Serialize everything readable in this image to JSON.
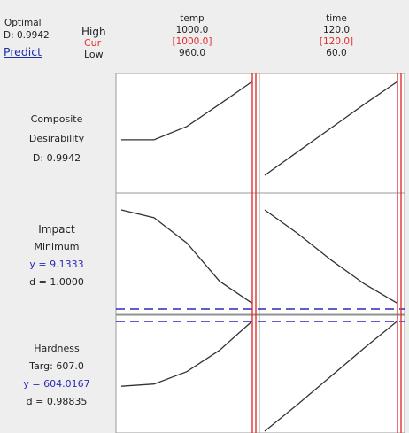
{
  "header": {
    "optimal_label": "Optimal",
    "d_value": "D: 0.9942",
    "predict_link": "Predict",
    "high_label": "High",
    "cur_label": "Cur",
    "low_label": "Low"
  },
  "factors": [
    {
      "name": "temp",
      "high": "1000.0",
      "cur": "[1000.0]",
      "low": "960.0"
    },
    {
      "name": "time",
      "high": "120.0",
      "cur": "[120.0]",
      "low": "60.0"
    }
  ],
  "rows": [
    {
      "title": "Composite",
      "line2": "Desirability",
      "line3": "D: 0.9942",
      "line4": ""
    },
    {
      "title": "Impact",
      "line2": "Minimum",
      "line3": "y = 9.1333",
      "line4": "d = 1.0000"
    },
    {
      "title": "Hardness",
      "line2": "Targ: 607.0",
      "line3": "y = 604.0167",
      "line4": "d = 0.98835"
    }
  ],
  "colors": {
    "background": "#eeeeee",
    "panel": "#ffffff",
    "curve": "#333333",
    "current_setting": "#e03030",
    "target_line": "#2a2ab8"
  },
  "chart_data": {
    "type": "line",
    "title": "",
    "factors": [
      "temp",
      "time"
    ],
    "responses": [
      "Composite Desirability",
      "Impact",
      "Hardness"
    ],
    "curves": [
      {
        "response": "Composite Desirability",
        "factor": "temp",
        "x": [
          960,
          970,
          980,
          990,
          1000
        ],
        "y": [
          0.6,
          0.6,
          0.69,
          0.84,
          0.9942
        ]
      },
      {
        "response": "Composite Desirability",
        "factor": "time",
        "x": [
          60,
          75,
          90,
          105,
          120
        ],
        "y": [
          0.36,
          0.52,
          0.68,
          0.84,
          0.9942
        ]
      },
      {
        "response": "Impact",
        "factor": "temp",
        "x": [
          960,
          970,
          980,
          990,
          1000
        ],
        "y": [
          9.84,
          9.78,
          9.59,
          9.3,
          9.1333
        ]
      },
      {
        "response": "Impact",
        "factor": "time",
        "x": [
          60,
          75,
          90,
          105,
          120
        ],
        "y": [
          9.84,
          9.66,
          9.46,
          9.28,
          9.1333
        ]
      },
      {
        "response": "Hardness",
        "factor": "temp",
        "x": [
          960,
          970,
          980,
          990,
          1000
        ],
        "y": [
          0.4,
          0.42,
          0.53,
          0.72,
          0.98
        ]
      },
      {
        "response": "Hardness",
        "factor": "time",
        "x": [
          60,
          75,
          90,
          105,
          120
        ],
        "y": [
          0.0,
          0.24,
          0.49,
          0.74,
          0.98
        ]
      }
    ],
    "current_settings": {
      "temp": 1000.0,
      "time": 120.0
    },
    "response_values": {
      "Composite Desirability": 0.9942,
      "Impact": 9.1333,
      "Hardness": 604.0167
    }
  }
}
